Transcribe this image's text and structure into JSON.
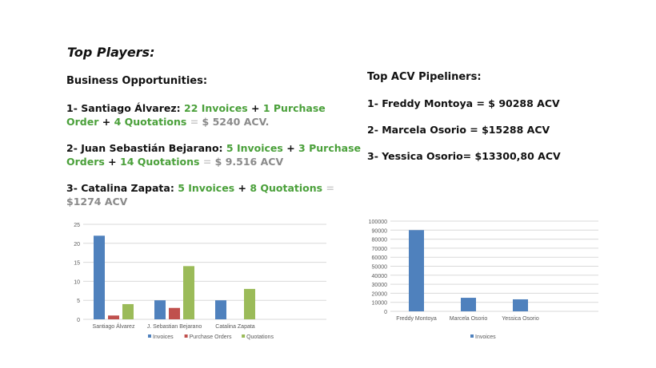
{
  "title": "Top Players:",
  "business": {
    "heading": "Business Opportunities:",
    "items": [
      {
        "prefix": "1-  ",
        "name": "Santiago Álvarez:",
        "sp1": " ",
        "invoices": "22 Invoices",
        "plus1": " + ",
        "po": "1 Purchase Order",
        "plus2": " + ",
        "quot": "4 Quotations",
        "eq": " = ",
        "acv": "$ 5240 ACV",
        "tail": "."
      },
      {
        "prefix": "2- ",
        "name": "Juan Sebastián Bejarano:",
        "sp1": " ",
        "invoices": "5 Invoices",
        "plus1": " + ",
        "po": "3 Purchase Orders",
        "plus2": " + ",
        "quot": "14 Quotations",
        "eq": " = ",
        "acv": "$ 9.516 ACV",
        "tail": ""
      },
      {
        "prefix": "3- ",
        "name": "Catalina Zapata:",
        "sp1": " ",
        "invoices": "5 Invoices",
        "plus1": " + ",
        "po": "8 Quotations",
        "plus2": "",
        "quot": "",
        "eq": " = ",
        "acv": "$1274 ACV",
        "tail": ""
      }
    ]
  },
  "acv": {
    "heading": "Top ACV Pipeliners:",
    "items": [
      {
        "text": "1- Freddy Montoya = $ 90288 ACV"
      },
      {
        "text": "2- Marcela Osorio = $15288 ACV"
      },
      {
        "text": "3- Yessica Osorio= $13300,80 ACV"
      }
    ]
  },
  "colors": {
    "invoices": "#4f81bd",
    "purchase_orders": "#c0504d",
    "quotations": "#9bbb59",
    "grid": "#d9d9d9",
    "axis_text": "#595959"
  },
  "chart_data": [
    {
      "type": "bar",
      "categories": [
        "Santiago Álvarez",
        "J. Sebastian Bejarano",
        "Catalina Zapata"
      ],
      "series": [
        {
          "name": "Invoices",
          "values": [
            22,
            5,
            5
          ]
        },
        {
          "name": "Purchase Orders",
          "values": [
            1,
            3,
            0
          ]
        },
        {
          "name": "Quotations",
          "values": [
            4,
            14,
            8
          ]
        }
      ],
      "ylim": [
        0,
        25
      ],
      "yticks": [
        0,
        5,
        10,
        15,
        20,
        25
      ],
      "legend": "bottom"
    },
    {
      "type": "bar",
      "categories": [
        "Freddy Montoya",
        "Marcela Osorio",
        "Yessica Osorio"
      ],
      "series": [
        {
          "name": "Invoices",
          "values": [
            90000,
            15000,
            13300
          ]
        }
      ],
      "ylim": [
        0,
        100000
      ],
      "yticks": [
        0,
        10000,
        20000,
        30000,
        40000,
        50000,
        60000,
        70000,
        80000,
        90000,
        100000
      ],
      "legend": "bottom"
    }
  ]
}
